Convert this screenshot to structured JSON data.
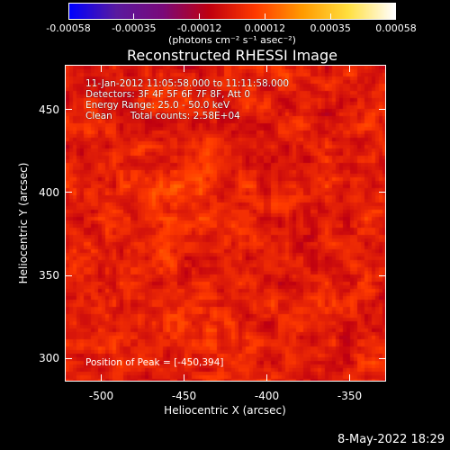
{
  "colorbar": {
    "min": -0.00058,
    "max": 0.00058,
    "colors": [
      "#0000ff",
      "#5a1aa0",
      "#7a0a7a",
      "#c00010",
      "#ff3a00",
      "#ff9a00",
      "#ffe040",
      "#ffffff"
    ],
    "tick_labels": [
      "-0.00058",
      "-0.00035",
      "-0.00012",
      "0.00012",
      "0.00035",
      "0.00058"
    ],
    "units": "(photons cm⁻² s⁻¹ asec⁻²)"
  },
  "title": "Reconstructed RHESSI Image",
  "annotations": {
    "time_range": "11-Jan-2012 11:05:58.000 to 11:11:58.000",
    "detectors": "Detectors: 3F 4F 5F 6F 7F 8F, Att 0",
    "energy_range": "Energy Range: 25.0 - 50.0 keV",
    "clean_counts": "Clean      Total counts: 2.58E+04",
    "peak_position": "Position of Peak = [-450,394]"
  },
  "axes": {
    "x_label": "Heliocentric X (arcsec)",
    "y_label": "Heliocentric Y (arcsec)",
    "x_range": [
      -522,
      -328
    ],
    "y_range": [
      286,
      477
    ],
    "x_ticks": [
      "-500",
      "-450",
      "-400",
      "-350"
    ],
    "y_ticks": [
      "300",
      "350",
      "400",
      "450"
    ]
  },
  "timestamp": "8-May-2022 18:29"
}
